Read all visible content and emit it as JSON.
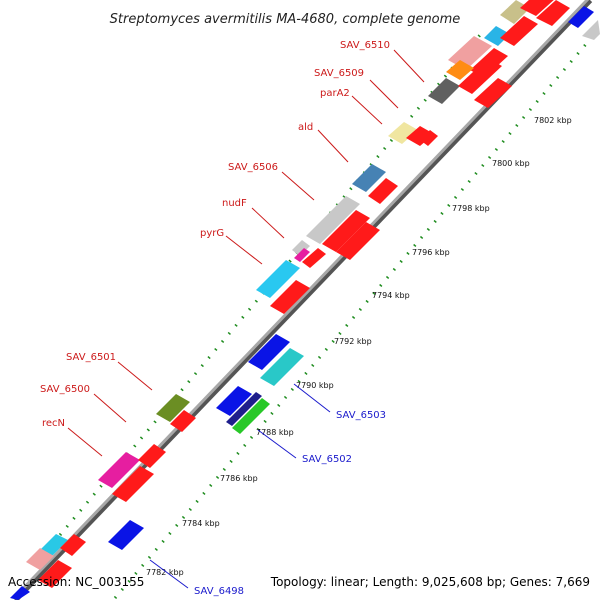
{
  "title": "Streptomyces avermitilis MA-4680, complete genome",
  "footer": {
    "accession_label": "Accession:",
    "accession": "NC_003155",
    "topology_label": "Topology:",
    "topology": "linear",
    "length_label": "Length:",
    "length": "9,025,608 bp",
    "genes_label": "Genes:",
    "genes": "7,669"
  },
  "ticks": [
    "7782 kbp",
    "7784 kbp",
    "7786 kbp",
    "7788 kbp",
    "7790 kbp",
    "7792 kbp",
    "7794 kbp",
    "7796 kbp",
    "7798 kbp",
    "7800 kbp",
    "7802 kbp"
  ],
  "gene_labels_top": [
    "SAV_6510",
    "SAV_6509",
    "parA2",
    "ald",
    "SAV_6506",
    "nudF",
    "pyrG",
    "SAV_6501",
    "SAV_6500",
    "recN"
  ],
  "gene_labels_bottom": [
    "SAV_6503",
    "SAV_6502",
    "SAV_6498"
  ],
  "colors": {
    "forward_gene": "#ff0000",
    "reverse_gene": "#0a14e6",
    "backbone": "#8c8c8c",
    "scale_dots": "#1e8c1e",
    "top_label": "#cc1a1a",
    "bottom_label": "#1a1acc"
  }
}
